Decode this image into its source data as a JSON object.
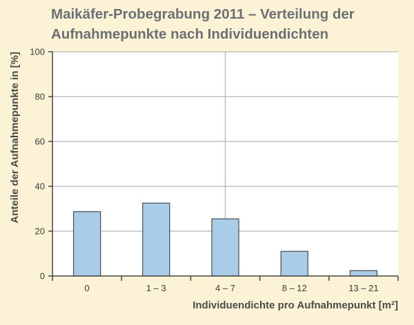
{
  "chart_data": {
    "type": "bar",
    "title_line1": "Maikäfer-Probegrabung 2011 – Verteilung der",
    "title_line2": "Aufnahmepunkte nach Individuendichten",
    "xlabel": "Individuendichte pro Aufnahmepunkt [m²]",
    "ylabel": "Anteile der Aufnahmepunkte in [%]",
    "categories": [
      "0",
      "1 – 3",
      "4 – 7",
      "8 – 12",
      "13 – 21"
    ],
    "values": [
      28.7,
      32.5,
      25.5,
      11,
      2.4
    ],
    "ylim": [
      0,
      100
    ],
    "yticks": [
      0,
      20,
      40,
      60,
      80,
      100
    ],
    "grid": true,
    "colors": {
      "bar": "#a9cde9",
      "bar_edge": "#4a4a4a",
      "background": "#fcf3d6",
      "plot": "#ffffff",
      "grid": "#b5b5b5"
    }
  }
}
